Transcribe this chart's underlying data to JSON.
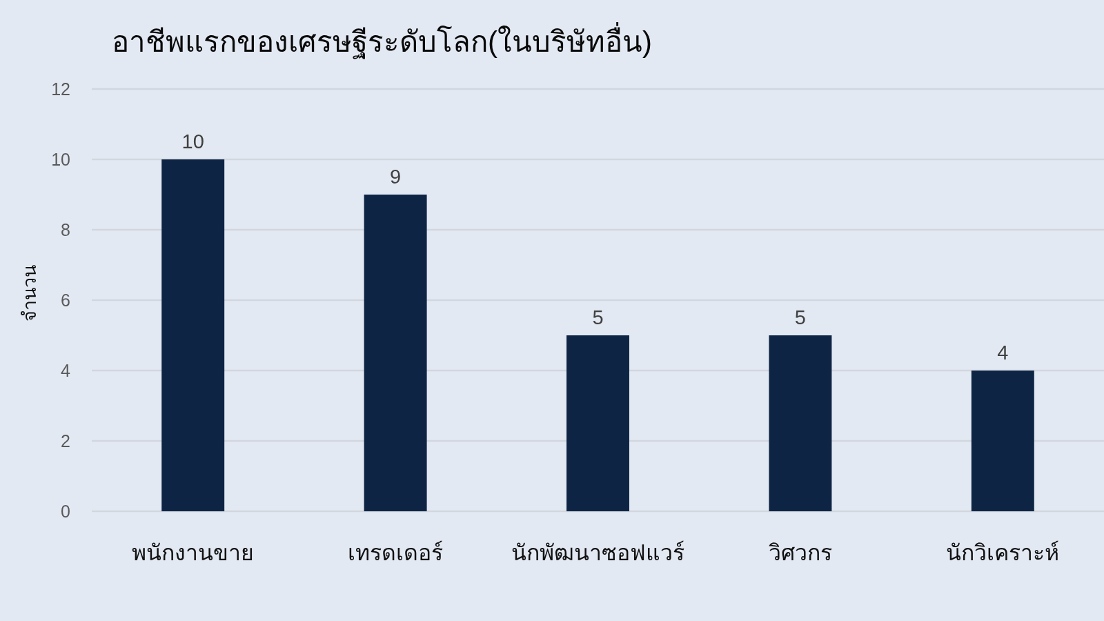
{
  "chart_data": {
    "type": "bar",
    "title": "อาชีพแรกของเศรษฐีระดับโลก(ในบริษัทอื่น)",
    "ylabel": "จำนวน",
    "categories": [
      "พนักงานขาย",
      "เทรดเดอร์",
      "นักพัฒนาซอฟแวร์",
      "วิศวกร",
      "นักวิเคราะห์"
    ],
    "values": [
      10,
      9,
      5,
      5,
      4
    ],
    "color": "#0e2445",
    "ylim": [
      0,
      12
    ],
    "yticks": [
      0,
      2,
      4,
      6,
      8,
      10,
      12
    ],
    "grid": "y",
    "data_labels": true
  }
}
